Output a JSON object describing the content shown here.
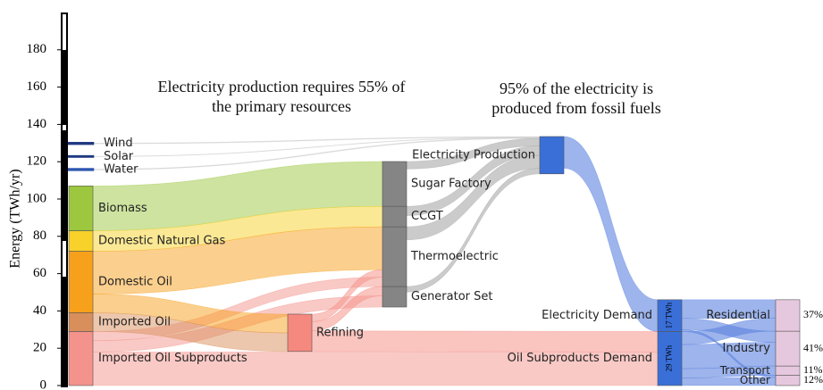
{
  "chart_data": {
    "type": "sankey",
    "ylabel": "Energy (TWh/yr)",
    "ylim": [
      0,
      200
    ],
    "yticks": [
      0,
      20,
      40,
      60,
      80,
      100,
      120,
      140,
      160,
      180
    ],
    "annotations": [
      {
        "lines": [
          "Electricity production requires 55% of",
          "the primary resources"
        ]
      },
      {
        "lines": [
          "95% of the electricity is",
          "produced  from fossil fuels"
        ]
      }
    ],
    "columns": [
      [
        {
          "name": "Imported Oil Subproducts",
          "value": 29,
          "color": "#f4938b"
        },
        {
          "name": "Imported Oil",
          "value": 10,
          "color": "#d98f5c"
        },
        {
          "name": "Domestic Oil",
          "value": 33,
          "color": "#f7a01c"
        },
        {
          "name": "Domestic Natural Gas",
          "value": 11,
          "color": "#f8d12a"
        },
        {
          "name": "Biomass",
          "value": 24,
          "color": "#9cc73f"
        },
        {
          "name": "Water",
          "value": 0.4,
          "color": "#2d55b0"
        },
        {
          "name": "Solar",
          "value": 0.2,
          "color": "#1f3a80"
        },
        {
          "name": "Wind",
          "value": 0.4,
          "color": "#1f3a80"
        }
      ],
      [
        {
          "name": "Refining",
          "value": 20,
          "color": "#f6897f"
        }
      ],
      [
        {
          "name": "Generator Set",
          "value": 11,
          "color": "#858585"
        },
        {
          "name": "Thermoelectric",
          "value": 32,
          "color": "#858585"
        },
        {
          "name": "CCGT",
          "value": 11,
          "color": "#858585"
        },
        {
          "name": "Sugar Factory",
          "value": 24,
          "color": "#858585"
        }
      ],
      [
        {
          "name": "Electricity Production",
          "value": 20,
          "color": "#3a6fd8"
        }
      ],
      [
        {
          "name": "Oil Subproducts Demand",
          "value": 29,
          "value_label": "29 TWh",
          "color": "#3a6fd8"
        },
        {
          "name": "Electricity Demand",
          "value": 17,
          "value_label": "17 TWh",
          "color": "#3a6fd8"
        }
      ],
      [
        {
          "name": "Other",
          "value": 12,
          "value_label": "12%",
          "color": "#e6c8de"
        },
        {
          "name": "Transport",
          "value": 11,
          "value_label": "11%",
          "color": "#e6c8de"
        },
        {
          "name": "Industry",
          "value": 41,
          "value_label": "41%",
          "color": "#e6c8de"
        },
        {
          "name": "Residential",
          "value": 37,
          "value_label": "37%",
          "color": "#e6c8de"
        }
      ]
    ],
    "links": [
      {
        "source": "Wind",
        "target": "Electricity Production",
        "value": 0.4
      },
      {
        "source": "Solar",
        "target": "Electricity Production",
        "value": 0.2
      },
      {
        "source": "Water",
        "target": "Electricity Production",
        "value": 0.4
      },
      {
        "source": "Biomass",
        "target": "Sugar Factory",
        "value": 24
      },
      {
        "source": "Domestic Natural Gas",
        "target": "CCGT",
        "value": 11
      },
      {
        "source": "Domestic Oil",
        "target": "Thermoelectric",
        "value": 23
      },
      {
        "source": "Refining",
        "target": "Thermoelectric",
        "value": 4
      },
      {
        "source": "Imported Oil Subproducts",
        "target": "Thermoelectric",
        "value": 5
      },
      {
        "source": "Refining",
        "target": "Generator Set",
        "value": 5
      },
      {
        "source": "Imported Oil Subproducts",
        "target": "Generator Set",
        "value": 6
      },
      {
        "source": "Domestic Oil",
        "target": "Refining",
        "value": 10
      },
      {
        "source": "Imported Oil",
        "target": "Refining",
        "value": 10
      },
      {
        "source": "Refining",
        "target": "Oil Subproducts Demand",
        "value": 11
      },
      {
        "source": "Imported Oil Subproducts",
        "target": "Oil Subproducts Demand",
        "value": 18
      },
      {
        "source": "Sugar Factory",
        "target": "Electricity Production",
        "value": 4
      },
      {
        "source": "CCGT",
        "target": "Electricity Production",
        "value": 5
      },
      {
        "source": "Thermoelectric",
        "target": "Electricity Production",
        "value": 7
      },
      {
        "source": "Generator Set",
        "target": "Electricity Production",
        "value": 3
      },
      {
        "source": "Electricity Production",
        "target": "Electricity Demand",
        "value": 17
      },
      {
        "source": "Electricity Demand",
        "target": "Residential",
        "value": 10
      },
      {
        "source": "Electricity Demand",
        "target": "Industry",
        "value": 6
      },
      {
        "source": "Electricity Demand",
        "target": "Other",
        "value": 1
      },
      {
        "source": "Oil Subproducts Demand",
        "target": "Residential",
        "value": 7
      },
      {
        "source": "Oil Subproducts Demand",
        "target": "Industry",
        "value": 13
      },
      {
        "source": "Oil Subproducts Demand",
        "target": "Transport",
        "value": 5
      },
      {
        "source": "Oil Subproducts Demand",
        "target": "Other",
        "value": 4
      }
    ]
  }
}
